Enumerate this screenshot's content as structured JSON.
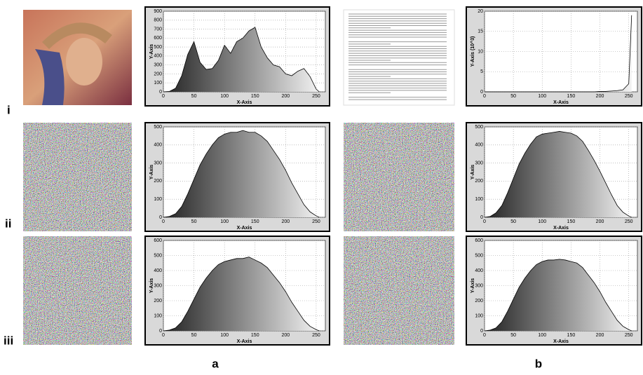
{
  "row_labels": [
    "i",
    "ii",
    "iii"
  ],
  "column_labels": [
    "a",
    "b"
  ],
  "chart_data": [
    {
      "type": "area",
      "xlabel": "X-Axis",
      "ylabel": "Y-Axis",
      "xlim": [
        0,
        265
      ],
      "ylim": [
        0,
        900
      ],
      "xticks": [
        0,
        50,
        100,
        150,
        200,
        250
      ],
      "yticks": [
        0,
        100,
        200,
        300,
        400,
        500,
        600,
        700,
        800,
        900
      ],
      "grid": true,
      "x": [
        0,
        10,
        20,
        30,
        40,
        50,
        60,
        70,
        80,
        90,
        100,
        110,
        120,
        130,
        140,
        150,
        160,
        170,
        180,
        190,
        200,
        210,
        220,
        230,
        240,
        250,
        255
      ],
      "values": [
        0,
        5,
        40,
        180,
        420,
        560,
        330,
        250,
        260,
        350,
        520,
        430,
        560,
        600,
        680,
        720,
        500,
        380,
        300,
        280,
        200,
        180,
        230,
        260,
        170,
        30,
        0
      ]
    },
    {
      "type": "area",
      "xlabel": "X-Axis",
      "ylabel": "Y-Axis (10^3)",
      "xlim": [
        0,
        265
      ],
      "ylim": [
        0,
        20
      ],
      "xticks": [
        0,
        50,
        100,
        150,
        200,
        250
      ],
      "yticks": [
        0,
        5,
        10,
        15,
        20
      ],
      "grid": true,
      "x": [
        0,
        10,
        20,
        30,
        40,
        50,
        60,
        70,
        80,
        90,
        100,
        110,
        120,
        130,
        140,
        150,
        160,
        170,
        180,
        190,
        200,
        210,
        220,
        230,
        240,
        250,
        255
      ],
      "values": [
        0,
        0,
        0,
        0,
        0,
        0,
        0,
        0,
        0,
        0,
        0,
        0,
        0,
        0,
        0,
        0,
        0,
        0,
        0,
        0,
        0.1,
        0.1,
        0.2,
        0.3,
        0.5,
        2,
        19
      ]
    },
    {
      "type": "area",
      "xlabel": "X-Axis",
      "ylabel": "Y-Axis",
      "xlim": [
        0,
        265
      ],
      "ylim": [
        0,
        500
      ],
      "xticks": [
        0,
        50,
        100,
        150,
        200,
        250
      ],
      "yticks": [
        0,
        100,
        200,
        300,
        400,
        500
      ],
      "grid": true,
      "x": [
        0,
        10,
        20,
        30,
        40,
        50,
        60,
        70,
        80,
        90,
        100,
        110,
        120,
        130,
        140,
        150,
        160,
        170,
        180,
        190,
        200,
        210,
        220,
        230,
        240,
        250,
        255
      ],
      "values": [
        0,
        5,
        20,
        60,
        130,
        210,
        290,
        350,
        400,
        440,
        460,
        470,
        470,
        480,
        470,
        470,
        450,
        420,
        370,
        320,
        260,
        190,
        130,
        70,
        30,
        8,
        0
      ]
    },
    {
      "type": "area",
      "xlabel": "X-Axis",
      "ylabel": "Y-Axis",
      "xlim": [
        0,
        265
      ],
      "ylim": [
        0,
        500
      ],
      "xticks": [
        0,
        50,
        100,
        150,
        200,
        250
      ],
      "yticks": [
        0,
        100,
        200,
        300,
        400,
        500
      ],
      "grid": true,
      "x": [
        0,
        10,
        20,
        30,
        40,
        50,
        60,
        70,
        80,
        90,
        100,
        110,
        120,
        130,
        140,
        150,
        160,
        170,
        180,
        190,
        200,
        210,
        220,
        230,
        240,
        250,
        255
      ],
      "values": [
        0,
        5,
        25,
        65,
        135,
        215,
        295,
        355,
        405,
        445,
        460,
        465,
        470,
        475,
        470,
        465,
        450,
        420,
        370,
        315,
        255,
        190,
        125,
        65,
        28,
        7,
        0
      ]
    },
    {
      "type": "area",
      "xlabel": "X-Axis",
      "ylabel": "Y-Axis",
      "xlim": [
        0,
        265
      ],
      "ylim": [
        0,
        600
      ],
      "xticks": [
        0,
        50,
        100,
        150,
        200,
        250
      ],
      "yticks": [
        0,
        100,
        200,
        300,
        400,
        500,
        600
      ],
      "grid": true,
      "x": [
        0,
        10,
        20,
        30,
        40,
        50,
        60,
        70,
        80,
        90,
        100,
        110,
        120,
        130,
        140,
        150,
        160,
        170,
        180,
        190,
        200,
        210,
        220,
        230,
        240,
        250,
        255
      ],
      "values": [
        0,
        5,
        20,
        60,
        130,
        210,
        290,
        350,
        400,
        440,
        460,
        470,
        480,
        480,
        490,
        470,
        450,
        420,
        370,
        320,
        260,
        190,
        130,
        70,
        30,
        8,
        0
      ]
    },
    {
      "type": "area",
      "xlabel": "X-Axis",
      "ylabel": "Y-Axis",
      "xlim": [
        0,
        265
      ],
      "ylim": [
        0,
        600
      ],
      "xticks": [
        0,
        50,
        100,
        150,
        200,
        250
      ],
      "yticks": [
        0,
        100,
        200,
        300,
        400,
        500,
        600
      ],
      "grid": true,
      "x": [
        0,
        10,
        20,
        30,
        40,
        50,
        60,
        70,
        80,
        90,
        100,
        110,
        120,
        130,
        140,
        150,
        160,
        170,
        180,
        190,
        200,
        210,
        220,
        230,
        240,
        250,
        255
      ],
      "values": [
        0,
        5,
        20,
        60,
        130,
        210,
        290,
        350,
        400,
        440,
        460,
        470,
        470,
        475,
        470,
        460,
        450,
        420,
        370,
        320,
        260,
        190,
        130,
        70,
        30,
        8,
        0
      ]
    }
  ]
}
